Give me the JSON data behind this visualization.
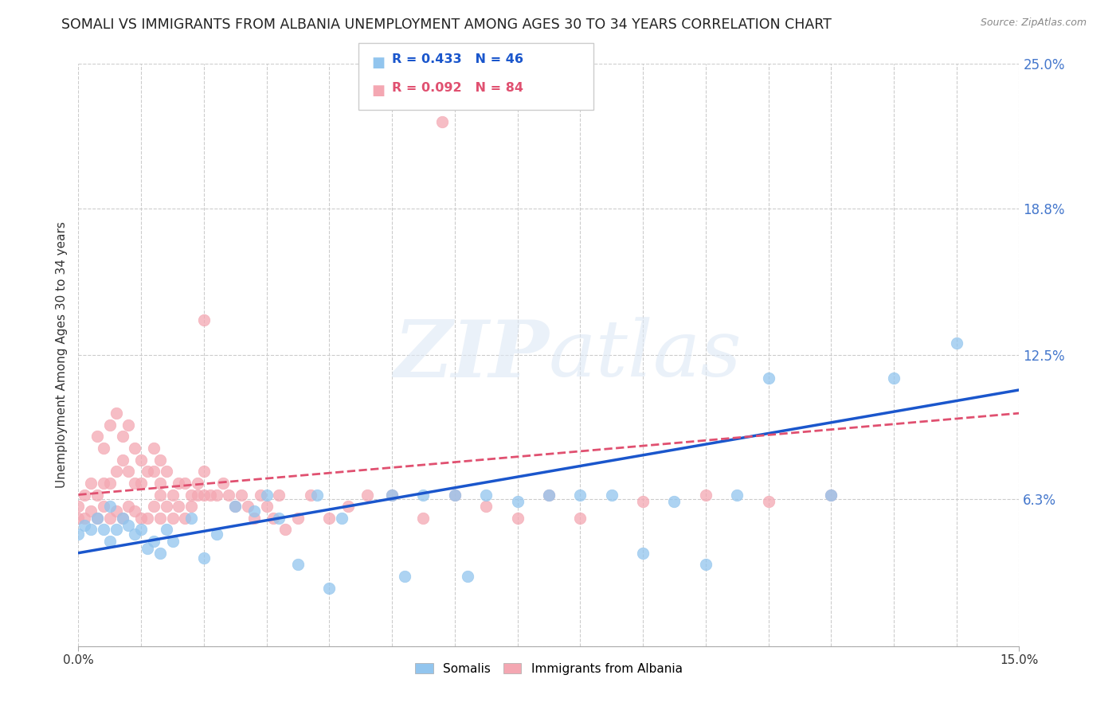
{
  "title": "SOMALI VS IMMIGRANTS FROM ALBANIA UNEMPLOYMENT AMONG AGES 30 TO 34 YEARS CORRELATION CHART",
  "source": "Source: ZipAtlas.com",
  "ylabel": "Unemployment Among Ages 30 to 34 years",
  "xlim": [
    0.0,
    0.15
  ],
  "ylim": [
    0.0,
    0.25
  ],
  "ytick_vals": [
    0.0,
    0.063,
    0.125,
    0.188,
    0.25
  ],
  "ytick_labels": [
    "",
    "6.3%",
    "12.5%",
    "18.8%",
    "25.0%"
  ],
  "somali_color": "#92C5EE",
  "albania_color": "#F4A7B2",
  "somali_line_color": "#1A56CC",
  "albania_line_color": "#E05070",
  "background_color": "#ffffff",
  "somali_R": 0.433,
  "somali_N": 46,
  "albania_R": 0.092,
  "albania_N": 84,
  "som_x": [
    0.0,
    0.001,
    0.002,
    0.003,
    0.004,
    0.005,
    0.005,
    0.006,
    0.007,
    0.008,
    0.009,
    0.01,
    0.011,
    0.012,
    0.013,
    0.014,
    0.015,
    0.018,
    0.02,
    0.022,
    0.025,
    0.028,
    0.03,
    0.032,
    0.035,
    0.038,
    0.04,
    0.042,
    0.05,
    0.052,
    0.055,
    0.06,
    0.062,
    0.065,
    0.07,
    0.075,
    0.08,
    0.085,
    0.09,
    0.095,
    0.1,
    0.105,
    0.11,
    0.12,
    0.13,
    0.14
  ],
  "som_y": [
    0.048,
    0.052,
    0.05,
    0.055,
    0.05,
    0.045,
    0.06,
    0.05,
    0.055,
    0.052,
    0.048,
    0.05,
    0.042,
    0.045,
    0.04,
    0.05,
    0.045,
    0.055,
    0.038,
    0.048,
    0.06,
    0.058,
    0.065,
    0.055,
    0.035,
    0.065,
    0.025,
    0.055,
    0.065,
    0.03,
    0.065,
    0.065,
    0.03,
    0.065,
    0.062,
    0.065,
    0.065,
    0.065,
    0.04,
    0.062,
    0.035,
    0.065,
    0.115,
    0.065,
    0.115,
    0.13
  ],
  "alb_x": [
    0.0,
    0.0,
    0.001,
    0.001,
    0.002,
    0.002,
    0.003,
    0.003,
    0.003,
    0.004,
    0.004,
    0.004,
    0.005,
    0.005,
    0.005,
    0.006,
    0.006,
    0.006,
    0.007,
    0.007,
    0.007,
    0.008,
    0.008,
    0.008,
    0.009,
    0.009,
    0.009,
    0.01,
    0.01,
    0.01,
    0.011,
    0.011,
    0.012,
    0.012,
    0.012,
    0.013,
    0.013,
    0.013,
    0.014,
    0.014,
    0.015,
    0.015,
    0.016,
    0.016,
    0.017,
    0.017,
    0.018,
    0.018,
    0.019,
    0.019,
    0.02,
    0.02,
    0.021,
    0.022,
    0.023,
    0.024,
    0.025,
    0.026,
    0.027,
    0.028,
    0.029,
    0.03,
    0.031,
    0.032,
    0.033,
    0.035,
    0.037,
    0.04,
    0.043,
    0.046,
    0.05,
    0.055,
    0.06,
    0.065,
    0.07,
    0.075,
    0.08,
    0.09,
    0.1,
    0.11,
    0.12,
    0.013,
    0.02,
    0.058
  ],
  "alb_y": [
    0.055,
    0.06,
    0.055,
    0.065,
    0.058,
    0.07,
    0.065,
    0.055,
    0.09,
    0.06,
    0.07,
    0.085,
    0.055,
    0.07,
    0.095,
    0.058,
    0.075,
    0.1,
    0.055,
    0.08,
    0.09,
    0.06,
    0.075,
    0.095,
    0.058,
    0.07,
    0.085,
    0.055,
    0.07,
    0.08,
    0.055,
    0.075,
    0.06,
    0.075,
    0.085,
    0.055,
    0.07,
    0.08,
    0.06,
    0.075,
    0.055,
    0.065,
    0.07,
    0.06,
    0.055,
    0.07,
    0.06,
    0.065,
    0.065,
    0.07,
    0.065,
    0.075,
    0.065,
    0.065,
    0.07,
    0.065,
    0.06,
    0.065,
    0.06,
    0.055,
    0.065,
    0.06,
    0.055,
    0.065,
    0.05,
    0.055,
    0.065,
    0.055,
    0.06,
    0.065,
    0.065,
    0.055,
    0.065,
    0.06,
    0.055,
    0.065,
    0.055,
    0.062,
    0.065,
    0.062,
    0.065,
    0.065,
    0.14,
    0.225
  ]
}
